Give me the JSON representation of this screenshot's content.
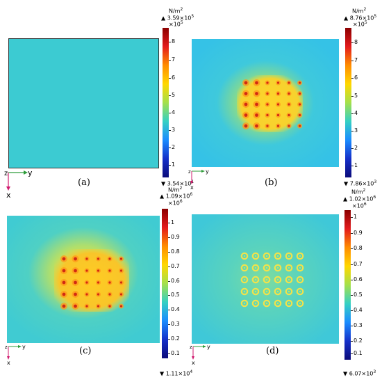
{
  "panels": [
    {
      "id": "a",
      "caption": "(a)",
      "unit": "N/m",
      "unit_exp": "2",
      "max_prefix": "▲",
      "max_value": "3.59×10",
      "max_exp": "5",
      "scale": "×10",
      "scale_exp": "5",
      "min_prefix": "▼",
      "min_value": "3.54×10",
      "min_exp": "1",
      "ticks": [
        "8",
        "7",
        "6",
        "5",
        "4",
        "3",
        "2",
        "1"
      ],
      "axis_z": "z",
      "axis_y": "y",
      "axis_x": "x"
    },
    {
      "id": "b",
      "caption": "(b)",
      "unit": "N/m",
      "unit_exp": "2",
      "max_prefix": "▲",
      "max_value": "8.76×10",
      "max_exp": "5",
      "scale": "×10",
      "scale_exp": "5",
      "min_prefix": "▼",
      "min_value": "7.86×10",
      "min_exp": "3",
      "ticks": [
        "8",
        "7",
        "6",
        "5",
        "4",
        "3",
        "2",
        "1"
      ],
      "axis_z": "z",
      "axis_y": "y",
      "axis_x": "x"
    },
    {
      "id": "c",
      "caption": "(c)",
      "unit": "N/m",
      "unit_exp": "2",
      "max_prefix": "▲",
      "max_value": "1.09×10",
      "max_exp": "6",
      "scale": "×10",
      "scale_exp": "6",
      "min_prefix": "▼",
      "min_value": "1.11×10",
      "min_exp": "4",
      "ticks": [
        "1",
        "0.9",
        "0.8",
        "0.7",
        "0.6",
        "0.5",
        "0.4",
        "0.3",
        "0.2",
        "0.1"
      ],
      "axis_z": "z",
      "axis_y": "y",
      "axis_x": "x"
    },
    {
      "id": "d",
      "caption": "(d)",
      "unit": "N/m",
      "unit_exp": "2",
      "max_prefix": "▲",
      "max_value": "1.02×10",
      "max_exp": "6",
      "scale": "×10",
      "scale_exp": "6",
      "min_prefix": "▼",
      "min_value": "6.07×10",
      "min_exp": "3",
      "ticks": [
        "1",
        "0.9",
        "0.8",
        "0.7",
        "0.6",
        "0.5",
        "0.4",
        "0.3",
        "0.2",
        "0.1"
      ],
      "axis_z": "z",
      "axis_y": "y",
      "axis_x": "x"
    }
  ],
  "colors": {
    "field_bg": "#33ccd6",
    "hotspot": "#f5d52a",
    "peak": "#d62818",
    "axis_y": "#2e9c3a",
    "axis_x": "#d01a6e"
  }
}
